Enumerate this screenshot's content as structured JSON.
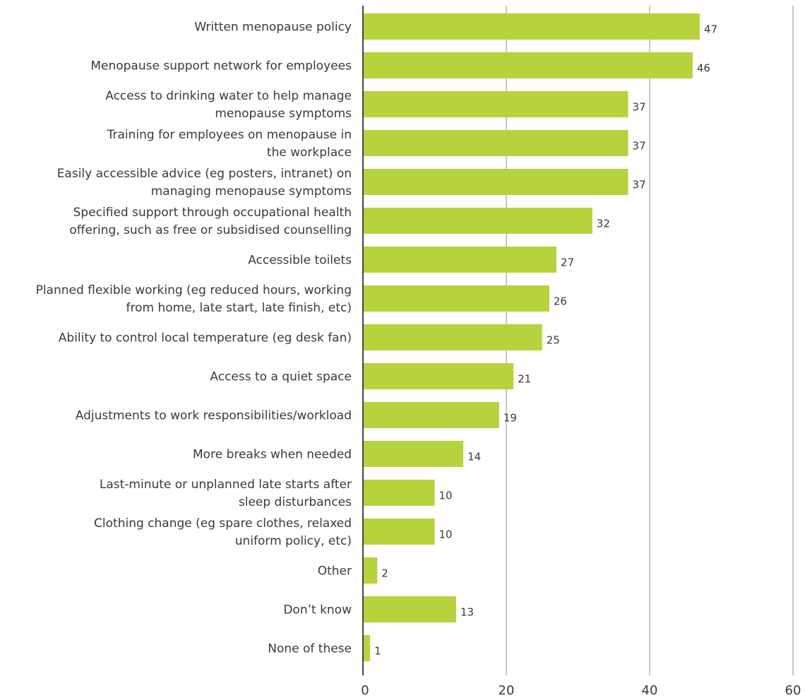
{
  "chart_data": {
    "type": "bar",
    "orientation": "horizontal",
    "title": "",
    "xlabel": "",
    "ylabel": "",
    "categories": [
      [
        "Written menopause policy"
      ],
      [
        "Menopause support network for employees"
      ],
      [
        "Access to drinking water to help manage",
        "menopause symptoms"
      ],
      [
        "Training for employees on menopause in",
        "the workplace"
      ],
      [
        "Easily accessible advice (eg posters, intranet) on",
        "managing menopause symptoms"
      ],
      [
        "Specified support through occupational health",
        "offering, such as free or subsidised counselling"
      ],
      [
        "Accessible toilets"
      ],
      [
        "Planned flexible working (eg reduced hours, working",
        "from home, late start, late finish, etc)"
      ],
      [
        "Ability to control local temperature (eg desk fan)"
      ],
      [
        "Access to a quiet space"
      ],
      [
        "Adjustments to work responsibilities/workload"
      ],
      [
        "More breaks when needed"
      ],
      [
        "Last-minute or unplanned late starts after",
        "sleep disturbances"
      ],
      [
        "Clothing change (eg spare clothes, relaxed",
        "uniform policy, etc)"
      ],
      [
        "Other"
      ],
      [
        "Don’t know"
      ],
      [
        "None of these"
      ]
    ],
    "values": [
      47,
      46,
      37,
      37,
      37,
      32,
      27,
      26,
      25,
      21,
      19,
      14,
      10,
      10,
      2,
      13,
      1
    ],
    "xlim": [
      0,
      60
    ],
    "xticks": [
      0,
      20,
      40,
      60
    ],
    "grid": true,
    "legend": "none",
    "colors": {
      "bar": "#b5d33d",
      "grid": "#c8c8c8",
      "axis": "#444444",
      "text": "#3a3a3a"
    }
  }
}
